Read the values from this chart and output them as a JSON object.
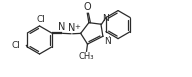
{
  "bg_color": "#ffffff",
  "line_color": "#2a2a2a",
  "lw": 0.9,
  "font_size": 6.5,
  "figsize": [
    1.92,
    0.77
  ],
  "dpi": 100,
  "xlim": [
    0,
    9.5
  ],
  "ylim": [
    0.0,
    3.8
  ]
}
